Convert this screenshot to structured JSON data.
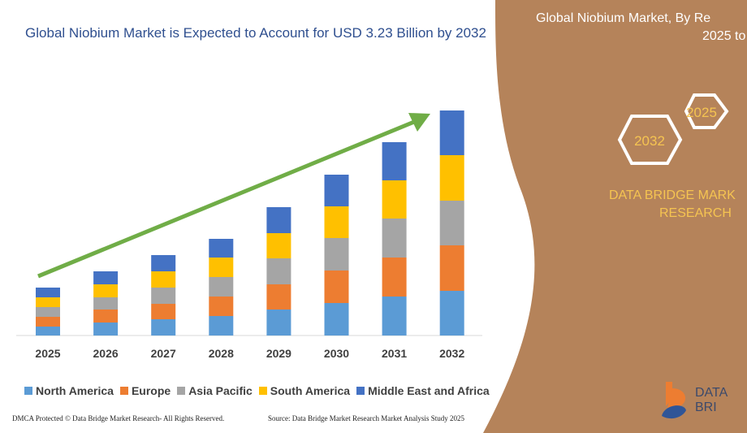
{
  "chart_data": {
    "type": "bar",
    "stacked": true,
    "title": "Global Niobium Market is Expected to Account for USD 3.23 Billion by 2032",
    "categories": [
      "2025",
      "2026",
      "2027",
      "2028",
      "2029",
      "2030",
      "2031",
      "2032"
    ],
    "series": [
      {
        "name": "North America",
        "color": "#5b9bd5",
        "values": [
          11,
          16,
          20,
          24,
          32,
          40,
          48,
          55
        ]
      },
      {
        "name": "Europe",
        "color": "#ed7d31",
        "values": [
          12,
          16,
          19,
          24,
          31,
          40,
          48,
          56
        ]
      },
      {
        "name": "Asia Pacific",
        "color": "#a5a5a5",
        "values": [
          12,
          15,
          20,
          24,
          32,
          40,
          48,
          55
        ]
      },
      {
        "name": "South America",
        "color": "#ffc000",
        "values": [
          12,
          16,
          20,
          24,
          31,
          39,
          47,
          56
        ]
      },
      {
        "name": "Middle East and Africa",
        "color": "#4472c4",
        "values": [
          12,
          16,
          20,
          23,
          32,
          39,
          47,
          55
        ]
      }
    ],
    "legend": "bottom",
    "grid": false,
    "trend_arrow_color": "#70ad47"
  },
  "side": {
    "title_line1": "Global Niobium Market, By Re",
    "title_line2": "2025 to",
    "hex1": "2025",
    "hex2": "2032",
    "brand_line1": "DATA BRIDGE MARK",
    "brand_line2": "RESEARCH",
    "panel_color": "#b5835a"
  },
  "footer": {
    "copyright": "DMCA Protected © Data Bridge Market Research-  All Rights Reserved.",
    "source": "Source: Data Bridge Market Research  Market Analysis Study 2025"
  },
  "logo": {
    "text": "DATA BRI"
  }
}
